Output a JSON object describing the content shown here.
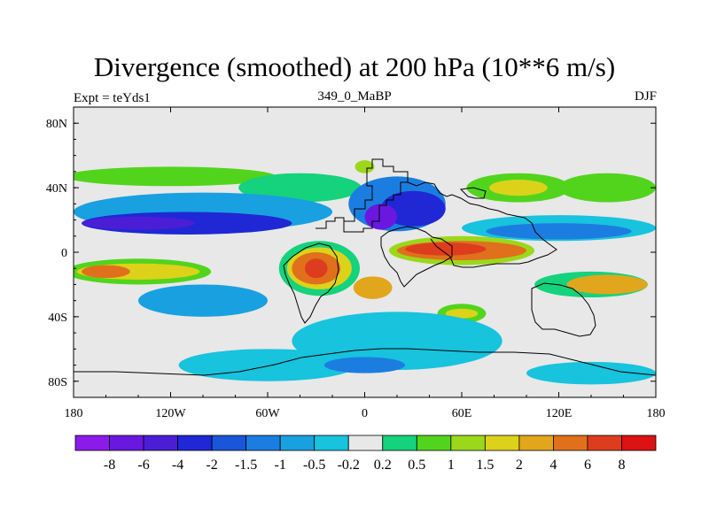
{
  "chart_data": {
    "type": "heatmap",
    "title": "Divergence (smoothed) at 200 hPa (10**6 m/s)",
    "left_label": "Expt = teYds1",
    "center_label": "349_0_MaBP",
    "right_label": "DJF",
    "x_ticks": [
      {
        "value": -180,
        "label": "180"
      },
      {
        "value": -120,
        "label": "120W"
      },
      {
        "value": -60,
        "label": "60W"
      },
      {
        "value": 0,
        "label": "0"
      },
      {
        "value": 60,
        "label": "60E"
      },
      {
        "value": 120,
        "label": "120E"
      },
      {
        "value": 180,
        "label": "180"
      }
    ],
    "y_ticks": [
      {
        "value": 80,
        "label": "80N"
      },
      {
        "value": 40,
        "label": "40N"
      },
      {
        "value": 0,
        "label": "0"
      },
      {
        "value": -40,
        "label": "40S"
      },
      {
        "value": -80,
        "label": "80S"
      }
    ],
    "xlim": [
      -180,
      180
    ],
    "ylim": [
      -90,
      90
    ],
    "colorbar": {
      "levels": [
        "-8",
        "-6",
        "-4",
        "-2",
        "-1.5",
        "-1",
        "-0.5",
        "-0.2",
        "0.2",
        "0.5",
        "1",
        "1.5",
        "2",
        "4",
        "6",
        "8"
      ],
      "colors": [
        "#8a1be8",
        "#6a17e0",
        "#4b1ed6",
        "#1f28d4",
        "#1a56d9",
        "#1c7de0",
        "#19a0e0",
        "#17c3dd",
        "#e8e8e8",
        "#15d27c",
        "#52d41d",
        "#9bd81c",
        "#ddd21a",
        "#e2a61c",
        "#e0701c",
        "#dd3d1e",
        "#dd1212"
      ]
    },
    "regions": [
      {
        "lon": -120,
        "lat": 47,
        "rx": 65,
        "ry": 6,
        "level": 10
      },
      {
        "lon": -40,
        "lat": 40,
        "rx": 38,
        "ry": 9,
        "level": 9
      },
      {
        "lon": 150,
        "lat": 40,
        "rx": 30,
        "ry": 9,
        "level": 10
      },
      {
        "lon": 95,
        "lat": 40,
        "rx": 32,
        "ry": 9,
        "level": 10
      },
      {
        "lon": 95,
        "lat": 40,
        "rx": 18,
        "ry": 5,
        "level": 12
      },
      {
        "lon": 0,
        "lat": 53,
        "rx": 6,
        "ry": 4,
        "level": 11
      },
      {
        "lon": -100,
        "lat": 25,
        "rx": 80,
        "ry": 12,
        "level": 6
      },
      {
        "lon": -110,
        "lat": 18,
        "rx": 65,
        "ry": 7,
        "level": 3
      },
      {
        "lon": -140,
        "lat": 18,
        "rx": 35,
        "ry": 4,
        "level": 2
      },
      {
        "lon": 20,
        "lat": 30,
        "rx": 30,
        "ry": 17,
        "level": 5
      },
      {
        "lon": 30,
        "lat": 27,
        "rx": 20,
        "ry": 11,
        "level": 3
      },
      {
        "lon": 10,
        "lat": 22,
        "rx": 10,
        "ry": 8,
        "level": 1
      },
      {
        "lon": 120,
        "lat": 15,
        "rx": 60,
        "ry": 8,
        "level": 7
      },
      {
        "lon": 120,
        "lat": 13,
        "rx": 45,
        "ry": 5,
        "level": 5
      },
      {
        "lon": -140,
        "lat": -12,
        "rx": 45,
        "ry": 8,
        "level": 10
      },
      {
        "lon": -140,
        "lat": -12,
        "rx": 38,
        "ry": 5,
        "level": 12
      },
      {
        "lon": -160,
        "lat": -12,
        "rx": 15,
        "ry": 4,
        "level": 14
      },
      {
        "lon": -28,
        "lat": -10,
        "rx": 25,
        "ry": 17,
        "level": 9
      },
      {
        "lon": -28,
        "lat": -10,
        "rx": 20,
        "ry": 13,
        "level": 12
      },
      {
        "lon": -30,
        "lat": -10,
        "rx": 15,
        "ry": 10,
        "level": 14
      },
      {
        "lon": -30,
        "lat": -10,
        "rx": 7,
        "ry": 6,
        "level": 15
      },
      {
        "lon": 60,
        "lat": 1,
        "rx": 45,
        "ry": 9,
        "level": 11
      },
      {
        "lon": 60,
        "lat": 1,
        "rx": 40,
        "ry": 6,
        "level": 14
      },
      {
        "lon": 50,
        "lat": 2,
        "rx": 25,
        "ry": 4,
        "level": 15
      },
      {
        "lon": 5,
        "lat": -22,
        "rx": 12,
        "ry": 7,
        "level": 13
      },
      {
        "lon": 140,
        "lat": -20,
        "rx": 35,
        "ry": 8,
        "level": 9
      },
      {
        "lon": 150,
        "lat": -20,
        "rx": 25,
        "ry": 6,
        "level": 13
      },
      {
        "lon": 60,
        "lat": -38,
        "rx": 15,
        "ry": 6,
        "level": 10
      },
      {
        "lon": 60,
        "lat": -38,
        "rx": 10,
        "ry": 3,
        "level": 12
      },
      {
        "lon": -100,
        "lat": -30,
        "rx": 40,
        "ry": 10,
        "level": 6
      },
      {
        "lon": 20,
        "lat": -55,
        "rx": 65,
        "ry": 18,
        "level": 7
      },
      {
        "lon": -60,
        "lat": -70,
        "rx": 55,
        "ry": 10,
        "level": 7
      },
      {
        "lon": 140,
        "lat": -75,
        "rx": 40,
        "ry": 7,
        "level": 7
      },
      {
        "lon": 0,
        "lat": -70,
        "rx": 25,
        "ry": 5,
        "level": 5
      }
    ]
  }
}
